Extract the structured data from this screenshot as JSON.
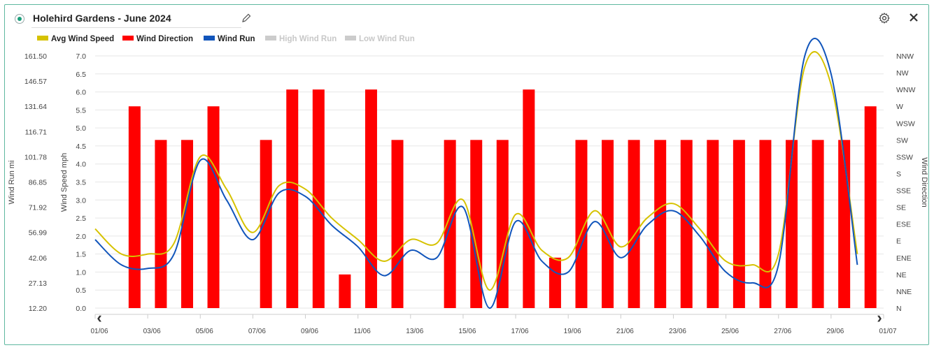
{
  "header": {
    "title": "Holehird Gardens - June 2024",
    "edit_icon": "pencil-icon",
    "settings_icon": "gear-icon",
    "close_icon": "close-icon"
  },
  "legend": [
    {
      "label": "Avg Wind Speed",
      "color": "#d6c200",
      "active": true
    },
    {
      "label": "Wind Direction",
      "color": "#ff0000",
      "active": true
    },
    {
      "label": "Wind Run",
      "color": "#1155bb",
      "active": true
    },
    {
      "label": "High Wind Run",
      "color": "#cccccc",
      "active": false
    },
    {
      "label": "Low Wind Run",
      "color": "#cccccc",
      "active": false
    }
  ],
  "chart_data": {
    "type": "bar",
    "x_axis": {
      "type": "date",
      "range": [
        "2024-06-01",
        "2024-07-01"
      ],
      "tick_labels": [
        "01/06",
        "03/06",
        "05/06",
        "07/06",
        "09/06",
        "11/06",
        "13/06",
        "15/06",
        "17/06",
        "19/06",
        "21/06",
        "23/06",
        "25/06",
        "27/06",
        "29/06",
        "01/07"
      ]
    },
    "y_axes": [
      {
        "id": "run",
        "label": "Wind Run mi",
        "side": "left-outer",
        "ticks": [
          "161.50",
          "146.57",
          "131.64",
          "116.71",
          "101.78",
          "86.85",
          "71.92",
          "56.99",
          "42.06",
          "27.13",
          "12.20"
        ],
        "range": [
          12.2,
          161.5
        ]
      },
      {
        "id": "speed",
        "label": "Wind Speed mph",
        "side": "left",
        "ticks": [
          "7.0",
          "6.5",
          "6.0",
          "5.5",
          "5.0",
          "4.5",
          "4.0",
          "3.5",
          "3.0",
          "2.5",
          "2.0",
          "1.5",
          "1.0",
          "0.5",
          "0.0"
        ],
        "range": [
          0,
          7
        ]
      },
      {
        "id": "direction",
        "label": "Wind Direction",
        "side": "right",
        "ticks": [
          "NNW",
          "NW",
          "WNW",
          "W",
          "WSW",
          "SW",
          "SSW",
          "S",
          "SSE",
          "SE",
          "ESE",
          "E",
          "ENE",
          "NE",
          "NNE",
          "N"
        ],
        "range": [
          0,
          15
        ]
      }
    ],
    "grid": true,
    "series": [
      {
        "name": "Avg Wind Speed",
        "type": "line",
        "axis": "speed",
        "color": "#d6c200",
        "x": [
          "2024-06-01",
          "2024-06-02",
          "2024-06-03",
          "2024-06-04",
          "2024-06-05",
          "2024-06-06",
          "2024-06-07",
          "2024-06-08",
          "2024-06-09",
          "2024-06-10",
          "2024-06-11",
          "2024-06-12",
          "2024-06-13",
          "2024-06-14",
          "2024-06-15",
          "2024-06-16",
          "2024-06-17",
          "2024-06-18",
          "2024-06-19",
          "2024-06-20",
          "2024-06-21",
          "2024-06-22",
          "2024-06-23",
          "2024-06-24",
          "2024-06-25",
          "2024-06-26",
          "2024-06-27",
          "2024-06-28",
          "2024-06-29",
          "2024-06-30"
        ],
        "values": [
          2.2,
          1.5,
          1.5,
          1.8,
          4.2,
          3.3,
          2.1,
          3.4,
          3.3,
          2.5,
          1.9,
          1.3,
          1.9,
          1.8,
          3.0,
          0.5,
          2.6,
          1.6,
          1.4,
          2.7,
          1.7,
          2.5,
          2.9,
          2.2,
          1.3,
          1.2,
          1.5,
          6.7,
          6.2,
          1.5
        ]
      },
      {
        "name": "Wind Run",
        "type": "line",
        "axis": "speed",
        "color": "#1155bb",
        "x": [
          "2024-06-01",
          "2024-06-02",
          "2024-06-03",
          "2024-06-04",
          "2024-06-05",
          "2024-06-06",
          "2024-06-07",
          "2024-06-08",
          "2024-06-09",
          "2024-06-10",
          "2024-06-11",
          "2024-06-12",
          "2024-06-13",
          "2024-06-14",
          "2024-06-15",
          "2024-06-16",
          "2024-06-17",
          "2024-06-18",
          "2024-06-19",
          "2024-06-20",
          "2024-06-21",
          "2024-06-22",
          "2024-06-23",
          "2024-06-24",
          "2024-06-25",
          "2024-06-26",
          "2024-06-27",
          "2024-06-28",
          "2024-06-29",
          "2024-06-30"
        ],
        "values": [
          1.9,
          1.2,
          1.1,
          1.5,
          4.1,
          3.0,
          1.9,
          3.2,
          3.1,
          2.3,
          1.7,
          0.9,
          1.6,
          1.4,
          2.8,
          0.0,
          2.4,
          1.3,
          1.0,
          2.4,
          1.4,
          2.3,
          2.7,
          2.0,
          1.0,
          0.7,
          1.2,
          7.0,
          6.5,
          1.2
        ]
      },
      {
        "name": "Wind Direction",
        "type": "bar",
        "axis": "direction",
        "color": "#ff0000",
        "x": [
          "2024-06-03",
          "2024-06-04",
          "2024-06-05",
          "2024-06-06",
          "2024-06-08",
          "2024-06-09",
          "2024-06-10",
          "2024-06-11",
          "2024-06-12",
          "2024-06-13",
          "2024-06-15",
          "2024-06-16",
          "2024-06-17",
          "2024-06-18",
          "2024-06-19",
          "2024-06-20",
          "2024-06-21",
          "2024-06-22",
          "2024-06-23",
          "2024-06-24",
          "2024-06-25",
          "2024-06-26",
          "2024-06-27",
          "2024-06-28",
          "2024-06-29",
          "2024-06-30",
          "2024-07-01"
        ],
        "values": [
          12,
          10,
          10,
          12,
          10,
          13,
          13,
          2,
          13,
          10,
          10,
          10,
          10,
          13,
          3,
          10,
          10,
          10,
          10,
          10,
          10,
          10,
          10,
          10,
          10,
          10,
          12
        ]
      }
    ]
  }
}
